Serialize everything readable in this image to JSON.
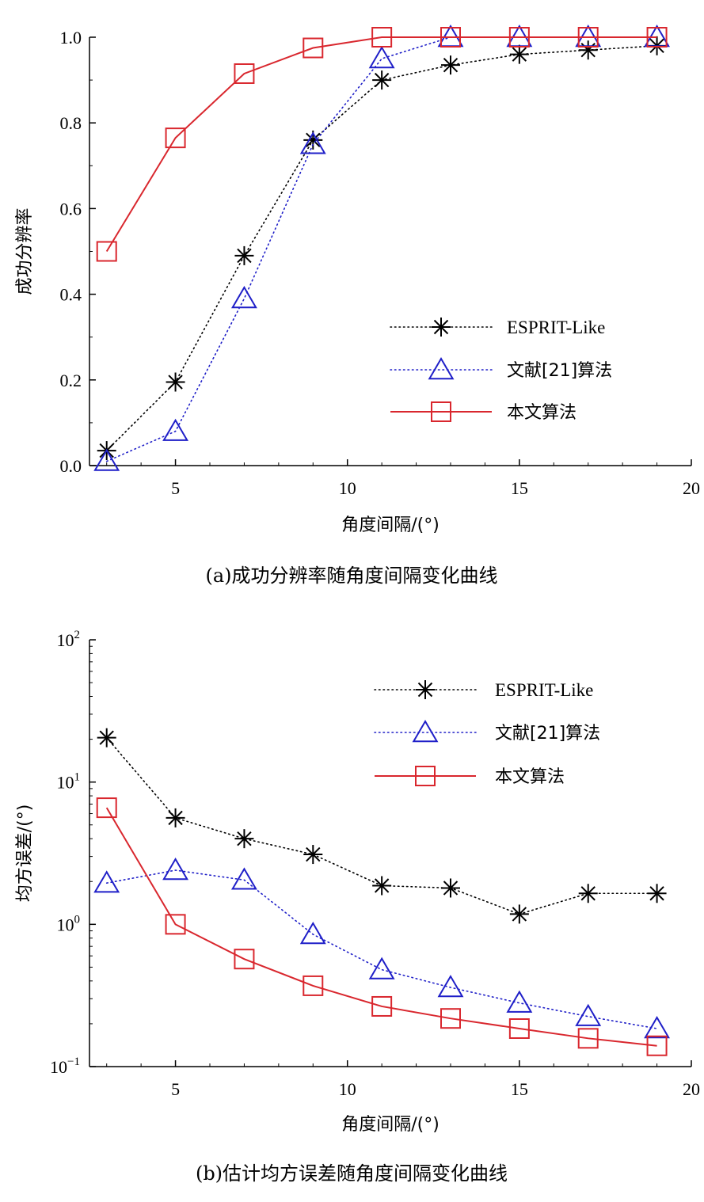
{
  "chart_data": [
    {
      "type": "line",
      "caption": "(a)成功分辨率随角度间隔变化曲线",
      "xlabel": "角度间隔/(°)",
      "ylabel": "成功分辨率",
      "xlim": [
        2.5,
        20
      ],
      "ylim": [
        0,
        1.0
      ],
      "yscale": "linear",
      "xticks": [
        5,
        10,
        15,
        20
      ],
      "xtick_labels": [
        "5",
        "10",
        "15",
        "20"
      ],
      "yticks": [
        0,
        0.2,
        0.4,
        0.6,
        0.8,
        1.0
      ],
      "ytick_labels": [
        "0.0",
        "0.2",
        "0.4",
        "0.6",
        "0.8",
        "1.0"
      ],
      "legend_position": "bottom-right",
      "grid": false,
      "x": [
        3,
        5,
        7,
        9,
        11,
        13,
        15,
        17,
        19
      ],
      "series": [
        {
          "name": "ESPRIT-Like",
          "marker": "asterisk",
          "line": "dotted",
          "color": "#000000",
          "values": [
            0.035,
            0.195,
            0.49,
            0.76,
            0.9,
            0.935,
            0.96,
            0.97,
            0.98
          ]
        },
        {
          "name": "文献[21]算法",
          "marker": "triangle",
          "line": "dotted",
          "color": "#1f1fc8",
          "values": [
            0.01,
            0.08,
            0.39,
            0.75,
            0.95,
            1.0,
            1.0,
            1.0,
            1.0
          ]
        },
        {
          "name": "本文算法",
          "marker": "square",
          "line": "solid",
          "color": "#d9272e",
          "values": [
            0.5,
            0.765,
            0.915,
            0.975,
            1.0,
            1.0,
            1.0,
            1.0,
            1.0
          ]
        }
      ]
    },
    {
      "type": "line",
      "caption": "(b)估计均方误差随角度间隔变化曲线",
      "xlabel": "角度间隔/(°)",
      "ylabel": "均方误差/(°)",
      "xlim": [
        2.5,
        20
      ],
      "ylim": [
        0.1,
        100
      ],
      "yscale": "log",
      "xticks": [
        5,
        10,
        15,
        20
      ],
      "xtick_labels": [
        "5",
        "10",
        "15",
        "20"
      ],
      "yticks": [
        0.1,
        1,
        10,
        100
      ],
      "ytick_base": "10",
      "ytick_exponents": [
        "−1",
        "0",
        "1",
        "2"
      ],
      "legend_position": "top-right",
      "grid": false,
      "x": [
        3,
        5,
        7,
        9,
        11,
        13,
        15,
        17,
        19
      ],
      "series": [
        {
          "name": "ESPRIT-Like",
          "marker": "asterisk",
          "line": "dotted",
          "color": "#000000",
          "values": [
            20.5,
            5.6,
            4.0,
            3.1,
            1.87,
            1.8,
            1.18,
            1.65,
            1.65
          ]
        },
        {
          "name": "文献[21]算法",
          "marker": "triangle",
          "line": "dotted",
          "color": "#1f1fc8",
          "values": [
            1.95,
            2.4,
            2.05,
            0.85,
            0.48,
            0.36,
            0.28,
            0.225,
            0.185
          ]
        },
        {
          "name": "本文算法",
          "marker": "square",
          "line": "solid",
          "color": "#d9272e",
          "values": [
            6.6,
            1.0,
            0.57,
            0.37,
            0.265,
            0.218,
            0.185,
            0.158,
            0.14
          ]
        }
      ]
    }
  ]
}
